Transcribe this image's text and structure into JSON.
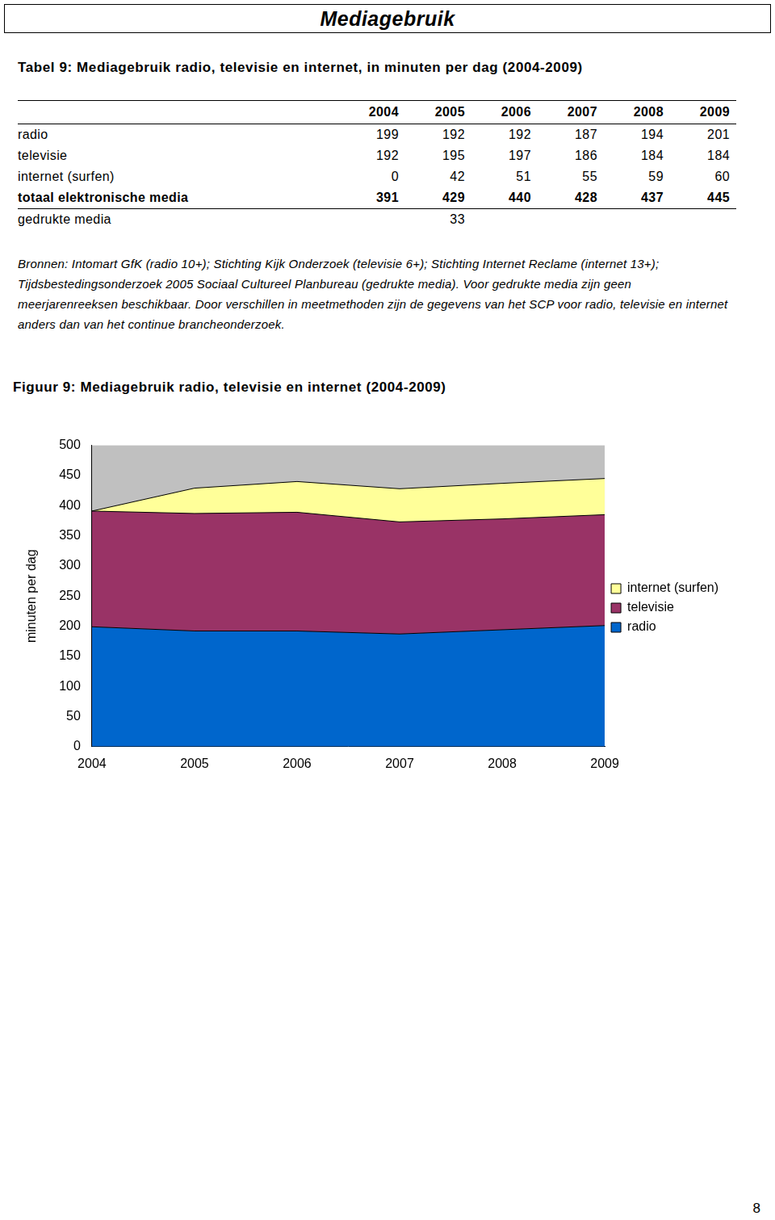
{
  "header": {
    "title": "Mediagebruik"
  },
  "table": {
    "title": "Tabel 9: Mediagebruik radio, televisie en internet, in minuten per dag (2004-2009)",
    "columns": [
      2004,
      2005,
      2006,
      2007,
      2008,
      2009
    ],
    "rows": [
      {
        "label": "radio",
        "values": [
          199,
          192,
          192,
          187,
          194,
          201
        ]
      },
      {
        "label": "televisie",
        "values": [
          192,
          195,
          197,
          186,
          184,
          184
        ]
      },
      {
        "label": "internet (surfen)",
        "values": [
          0,
          42,
          51,
          55,
          59,
          60
        ]
      }
    ],
    "total": {
      "label": "totaal elektronische media",
      "values": [
        391,
        429,
        440,
        428,
        437,
        445
      ]
    },
    "extra_rows": [
      {
        "label": "gedrukte media",
        "values": [
          null,
          33,
          null,
          null,
          null,
          null
        ]
      }
    ],
    "notes": "Bronnen: Intomart GfK (radio 10+); Stichting Kijk Onderzoek (televisie 6+); Stichting Internet Reclame (internet 13+); Tijdsbestedingsonderzoek 2005 Sociaal Cultureel Planbureau (gedrukte media). Voor gedrukte media zijn geen meerjarenreeksen beschikbaar. Door verschillen in meetmethoden zijn de gegevens van het SCP voor radio, televisie en internet anders dan van het continue brancheonderzoek."
  },
  "chart_data": {
    "type": "area",
    "title": "Figuur 9: Mediagebruik radio, televisie en internet (2004-2009)",
    "y_label": "minuten per dag",
    "categories": [
      "2004",
      "2005",
      "2006",
      "2007",
      "2008",
      "2009"
    ],
    "series": [
      {
        "name": "radio",
        "color": "#0066CC",
        "values": [
          199,
          192,
          192,
          187,
          194,
          201
        ]
      },
      {
        "name": "televisie",
        "color": "#993366",
        "values": [
          192,
          195,
          197,
          186,
          184,
          184
        ]
      },
      {
        "name": "internet (surfen)",
        "color": "#FFFF99",
        "values": [
          0,
          42,
          51,
          55,
          59,
          60
        ]
      }
    ],
    "stacked": true,
    "ylim": [
      0,
      500
    ],
    "yticks": [
      0,
      50,
      100,
      150,
      200,
      250,
      300,
      350,
      400,
      450,
      500
    ],
    "grid": false,
    "legend": "right"
  },
  "page_number": 8
}
